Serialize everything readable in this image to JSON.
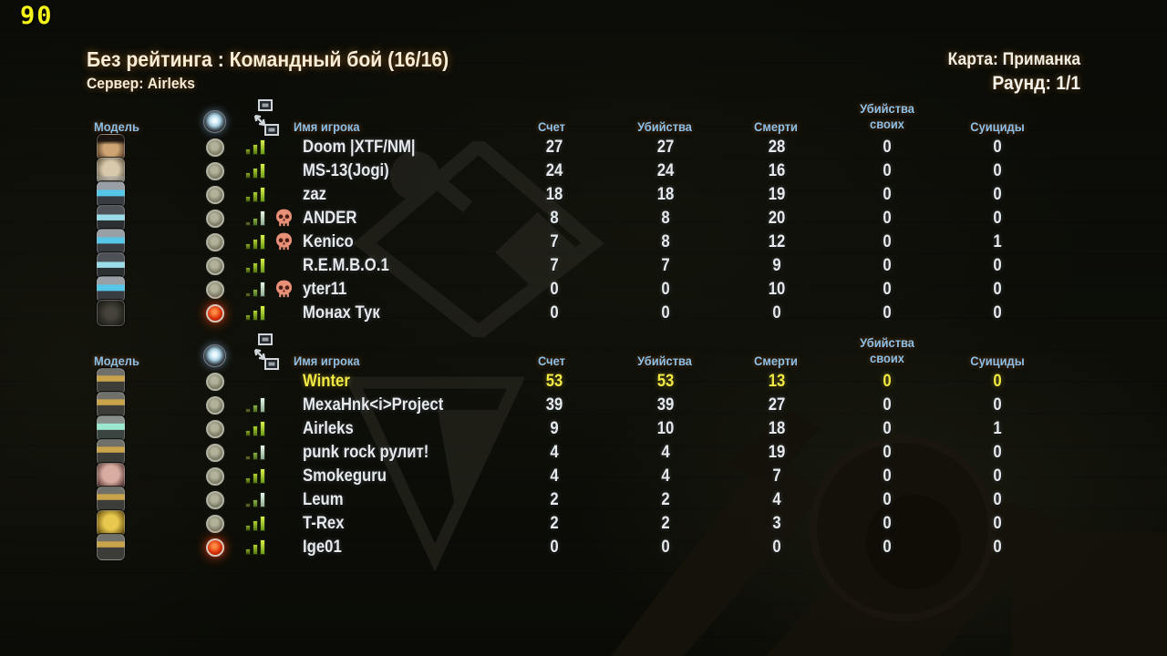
{
  "hud": {
    "timer": "90"
  },
  "header": {
    "title": "Без рейтинга : Командный бой (16/16)",
    "server": "Сервер: Airleks",
    "map": "Карта: Приманка",
    "round": "Раунд: 1/1"
  },
  "columns": {
    "model": "Модель",
    "name": "Имя игрока",
    "score": "Счет",
    "kills": "Убийства",
    "deaths": "Смерти",
    "team_kills_1": "Убийства",
    "team_kills_2": "своих",
    "suicides": "Суициды"
  },
  "icons": {
    "header_status": "voice-status-circle-icon",
    "header_net": "network-ping-icon",
    "dead_marker": "skull-icon"
  },
  "colors": {
    "accent_yellow": "#f2ea44",
    "header_blue": "#8cc0e8",
    "timer_yellow": "#f4f41a",
    "red_indicator": "#d62c08",
    "ping_green": "#b2d232"
  },
  "teams": [
    {
      "id": "team1",
      "players": [
        {
          "name": "Doom |XTF/NM|",
          "score": 27,
          "kills": 27,
          "deaths": 28,
          "team_kills": 0,
          "suicides": 0,
          "dead": false,
          "ping": "good",
          "indicator": "grey",
          "avatar": "face-hair",
          "me": false
        },
        {
          "name": "MS-13(Jogi)",
          "score": 24,
          "kills": 24,
          "deaths": 16,
          "team_kills": 0,
          "suicides": 0,
          "dead": false,
          "ping": "good",
          "indicator": "grey",
          "avatar": "face-bald",
          "me": false
        },
        {
          "name": "zaz",
          "score": 18,
          "kills": 18,
          "deaths": 19,
          "team_kills": 0,
          "suicides": 0,
          "dead": false,
          "ping": "good",
          "indicator": "grey",
          "avatar": "helmet-visor",
          "me": false
        },
        {
          "name": "ANDER",
          "score": 8,
          "kills": 8,
          "deaths": 20,
          "team_kills": 0,
          "suicides": 0,
          "dead": true,
          "ping": "mid",
          "indicator": "grey",
          "avatar": "goggles",
          "me": false
        },
        {
          "name": "Kenico",
          "score": 7,
          "kills": 8,
          "deaths": 12,
          "team_kills": 0,
          "suicides": 1,
          "dead": true,
          "ping": "good",
          "indicator": "grey",
          "avatar": "helmet-visor",
          "me": false
        },
        {
          "name": "R.E.M.B.O.1",
          "score": 7,
          "kills": 7,
          "deaths": 9,
          "team_kills": 0,
          "suicides": 0,
          "dead": false,
          "ping": "good",
          "indicator": "grey",
          "avatar": "goggles",
          "me": false
        },
        {
          "name": "yter11",
          "score": 0,
          "kills": 0,
          "deaths": 10,
          "team_kills": 0,
          "suicides": 0,
          "dead": true,
          "ping": "mid",
          "indicator": "grey",
          "avatar": "helmet-visor",
          "me": false
        },
        {
          "name": "Монах Тук",
          "score": 0,
          "kills": 0,
          "deaths": 0,
          "team_kills": 0,
          "suicides": 0,
          "dead": false,
          "ping": "good",
          "indicator": "red",
          "avatar": "dark-hood",
          "me": false
        }
      ]
    },
    {
      "id": "team2",
      "players": [
        {
          "name": "Winter",
          "score": 53,
          "kills": 53,
          "deaths": 13,
          "team_kills": 0,
          "suicides": 0,
          "dead": false,
          "ping": "none",
          "indicator": "grey",
          "avatar": "armor-gold",
          "me": true
        },
        {
          "name": "MexaHnk<i>Project",
          "score": 39,
          "kills": 39,
          "deaths": 27,
          "team_kills": 0,
          "suicides": 0,
          "dead": false,
          "ping": "mid",
          "indicator": "grey",
          "avatar": "armor-gold",
          "me": false
        },
        {
          "name": "Airleks",
          "score": 9,
          "kills": 10,
          "deaths": 18,
          "team_kills": 0,
          "suicides": 1,
          "dead": false,
          "ping": "good",
          "indicator": "grey",
          "avatar": "armor-green",
          "me": false
        },
        {
          "name": "punk rock рулит!",
          "score": 4,
          "kills": 4,
          "deaths": 19,
          "team_kills": 0,
          "suicides": 0,
          "dead": false,
          "ping": "mid",
          "indicator": "grey",
          "avatar": "armor-gold",
          "me": false
        },
        {
          "name": "Smokeguru",
          "score": 4,
          "kills": 4,
          "deaths": 7,
          "team_kills": 0,
          "suicides": 0,
          "dead": false,
          "ping": "good",
          "indicator": "grey",
          "avatar": "head-pink",
          "me": false
        },
        {
          "name": "Leum",
          "score": 2,
          "kills": 2,
          "deaths": 4,
          "team_kills": 0,
          "suicides": 0,
          "dead": false,
          "ping": "mid",
          "indicator": "grey",
          "avatar": "armor-gold",
          "me": false
        },
        {
          "name": "T-Rex",
          "score": 2,
          "kills": 2,
          "deaths": 3,
          "team_kills": 0,
          "suicides": 0,
          "dead": false,
          "ping": "good",
          "indicator": "grey",
          "avatar": "helmet-gold",
          "me": false
        },
        {
          "name": "Ige01",
          "score": 0,
          "kills": 0,
          "deaths": 0,
          "team_kills": 0,
          "suicides": 0,
          "dead": false,
          "ping": "good",
          "indicator": "red",
          "avatar": "armor-gold",
          "me": false
        }
      ]
    }
  ]
}
